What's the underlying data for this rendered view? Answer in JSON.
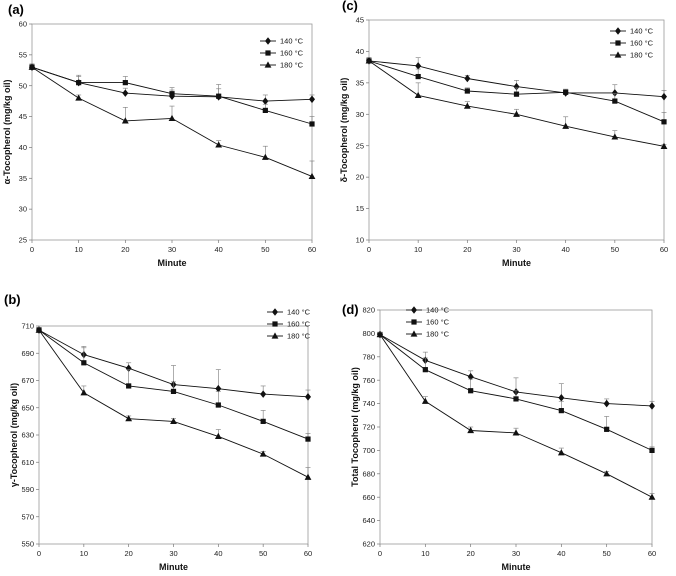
{
  "chart_data": [
    {
      "id": "a",
      "type": "line",
      "panel_label": "(a)",
      "xlabel": "Minute",
      "ylabel": "α-Tocopherol (mg/kg oil)",
      "x": [
        0,
        10,
        20,
        30,
        40,
        50,
        60
      ],
      "xticks": [
        0,
        10,
        20,
        30,
        40,
        50,
        60
      ],
      "xlim": [
        0,
        60
      ],
      "ylim": [
        25,
        60
      ],
      "yticks": [
        25,
        30,
        35,
        40,
        45,
        50,
        55,
        60
      ],
      "legend_position": "top-right",
      "series": [
        {
          "name": "140 °C",
          "marker": "diamond",
          "values": [
            53,
            50.5,
            48.8,
            48.3,
            48.2,
            47.5,
            47.8
          ],
          "errors": [
            0.5,
            1.0,
            0.8,
            1.0,
            2.0,
            1.0,
            0.7
          ]
        },
        {
          "name": "160 °C",
          "marker": "square",
          "values": [
            53,
            50.5,
            50.5,
            48.7,
            48.3,
            46,
            43.8
          ],
          "errors": [
            0.5,
            1.2,
            1.0,
            1.0,
            1.2,
            1.0,
            1.2
          ]
        },
        {
          "name": "180 °C",
          "marker": "triangle",
          "values": [
            53,
            48,
            44.3,
            44.7,
            40.4,
            38.4,
            35.3
          ],
          "errors": [
            0.5,
            0.5,
            2.2,
            2.0,
            0.7,
            1.8,
            2.5
          ]
        }
      ]
    },
    {
      "id": "c",
      "type": "line",
      "panel_label": "(c)",
      "xlabel": "Minute",
      "ylabel": "δ-Tocopherol (mg/kg oil)",
      "x": [
        0,
        10,
        20,
        30,
        40,
        50,
        60
      ],
      "xticks": [
        0,
        10,
        20,
        30,
        40,
        50,
        60
      ],
      "xlim": [
        0,
        60
      ],
      "ylim": [
        10,
        45
      ],
      "yticks": [
        10,
        15,
        20,
        25,
        30,
        35,
        40,
        45
      ],
      "legend_position": "top-right",
      "series": [
        {
          "name": "140 °C",
          "marker": "diamond",
          "values": [
            38.5,
            37.7,
            35.7,
            34.4,
            33.4,
            33.4,
            32.8
          ],
          "errors": [
            0.5,
            1.3,
            0.5,
            1.0,
            0.5,
            1.3,
            1.0
          ]
        },
        {
          "name": "160 °C",
          "marker": "square",
          "values": [
            38.5,
            36,
            33.7,
            33.2,
            33.5,
            32.1,
            28.8
          ],
          "errors": [
            0.5,
            1.2,
            0.5,
            1.0,
            0.5,
            1.2,
            1.5
          ]
        },
        {
          "name": "180 °C",
          "marker": "triangle",
          "values": [
            38.5,
            33,
            31.3,
            30,
            28.1,
            26.4,
            24.9
          ],
          "errors": [
            0.5,
            2.0,
            0.7,
            0.8,
            1.5,
            1.0,
            0.3
          ]
        }
      ]
    },
    {
      "id": "b",
      "type": "line",
      "panel_label": "(b)",
      "xlabel": "Minute",
      "ylabel": "γ-Tocopherol (mg/kg oil)",
      "x": [
        0,
        10,
        20,
        30,
        40,
        50,
        60
      ],
      "xticks": [
        0,
        10,
        20,
        30,
        40,
        50,
        60
      ],
      "xlim": [
        0,
        60
      ],
      "ylim": [
        550,
        710
      ],
      "yticks": [
        550,
        570,
        590,
        610,
        630,
        650,
        670,
        690,
        710
      ],
      "legend_position": "top-right",
      "series": [
        {
          "name": "140 °C",
          "marker": "diamond",
          "values": [
            707,
            689,
            679,
            667,
            664,
            660,
            658
          ],
          "errors": [
            2,
            5,
            4,
            14,
            14,
            6,
            5
          ]
        },
        {
          "name": "160 °C",
          "marker": "square",
          "values": [
            707,
            683,
            666,
            662,
            652,
            640,
            627
          ],
          "errors": [
            2,
            12,
            12,
            7,
            10,
            8,
            4
          ]
        },
        {
          "name": "180 °C",
          "marker": "triangle",
          "values": [
            707,
            661,
            642,
            640,
            629,
            616,
            599
          ],
          "errors": [
            2,
            5,
            2,
            2,
            5,
            2,
            7
          ]
        }
      ]
    },
    {
      "id": "d",
      "type": "line",
      "panel_label": "(d)",
      "xlabel": "Minute",
      "ylabel": "Total Tocopherol (mg/kg oil)",
      "x": [
        0,
        10,
        20,
        30,
        40,
        50,
        60
      ],
      "xticks": [
        0,
        10,
        20,
        30,
        40,
        50,
        60
      ],
      "xlim": [
        0,
        60
      ],
      "ylim": [
        620,
        820
      ],
      "yticks": [
        620,
        640,
        660,
        680,
        700,
        720,
        740,
        760,
        780,
        800,
        820
      ],
      "legend_position": "top-left",
      "series": [
        {
          "name": "140 °C",
          "marker": "diamond",
          "values": [
            799,
            777,
            763,
            750,
            745,
            740,
            738
          ],
          "errors": [
            2,
            7,
            5,
            12,
            12,
            4,
            4
          ]
        },
        {
          "name": "160 °C",
          "marker": "square",
          "values": [
            799,
            769,
            751,
            744,
            734,
            718,
            700
          ],
          "errors": [
            2,
            10,
            10,
            7,
            8,
            11,
            3
          ]
        },
        {
          "name": "180 °C",
          "marker": "triangle",
          "values": [
            799,
            742,
            717,
            715,
            698,
            680,
            660
          ],
          "errors": [
            2,
            4,
            3,
            4,
            4,
            2,
            3
          ]
        }
      ]
    }
  ]
}
